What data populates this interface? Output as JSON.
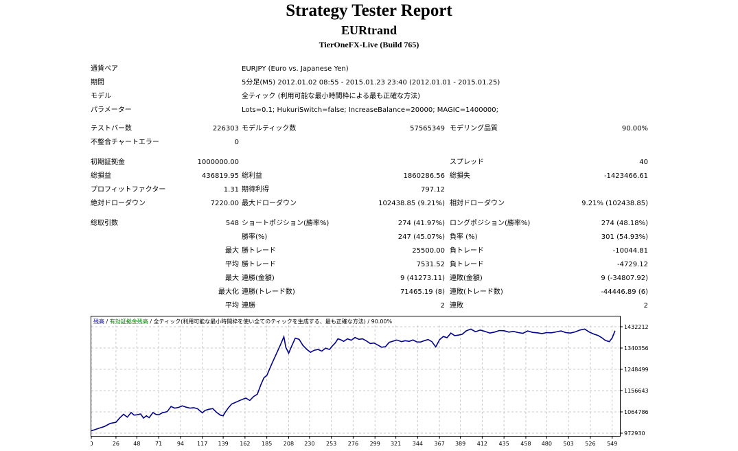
{
  "report": {
    "title": "Strategy Tester Report",
    "ea_name": "EURtrand",
    "server": "TierOneFX-Live (Build 765)"
  },
  "info": {
    "symbol_label": "通貨ペア",
    "symbol_value": "EURJPY (Euro vs. Japanese Yen)",
    "period_label": "期間",
    "period_value": "5分足(M5) 2012.01.02 08:55 - 2015.01.23 23:40 (2012.01.01 - 2015.01.25)",
    "model_label": "モデル",
    "model_value": "全ティック (利用可能な最小時間枠による最も正確な方法)",
    "params_label": "パラメーター",
    "params_value": "Lots=0.1; HukuriSwitch=false; IncreaseBalance=20000; MAGIC=1400000;"
  },
  "stats": {
    "bars_label": "テストバー数",
    "bars_value": "226303",
    "ticks_label": "モデルティック数",
    "ticks_value": "57565349",
    "quality_label": "モデリング品質",
    "quality_value": "90.00%",
    "mismatch_label": "不整合チャートエラー",
    "mismatch_value": "0",
    "deposit_label": "初期証拠金",
    "deposit_value": "1000000.00",
    "spread_label": "スプレッド",
    "spread_value": "40",
    "net_label": "総損益",
    "net_value": "436819.95",
    "gross_profit_label": "総利益",
    "gross_profit_value": "1860286.56",
    "gross_loss_label": "総損失",
    "gross_loss_value": "-1423466.61",
    "pf_label": "プロフィットファクター",
    "pf_value": "1.31",
    "expected_label": "期待利得",
    "expected_value": "797.12",
    "abs_dd_label": "絶対ドローダウン",
    "abs_dd_value": "7220.00",
    "max_dd_label": "最大ドローダウン",
    "max_dd_value": "102438.85 (9.21%)",
    "rel_dd_label": "相対ドローダウン",
    "rel_dd_value": "9.21% (102438.85)",
    "trades_label": "総取引数",
    "trades_value": "548",
    "short_label": "ショートポジション(勝率%)",
    "short_value": "274 (41.97%)",
    "long_label": "ロングポジション(勝率%)",
    "long_value": "274 (48.18%)",
    "win_rate_label": "勝率(%)",
    "win_rate_value": "247 (45.07%)",
    "loss_rate_label": "負率 (%)",
    "loss_rate_value": "301 (54.93%)",
    "max_prefix": "最大",
    "largest_win_label": "勝トレード",
    "largest_win_value": "25500.00",
    "largest_loss_label": "負トレード",
    "largest_loss_value": "-10044.81",
    "avg_prefix": "平均",
    "avg_win_label": "勝トレード",
    "avg_win_value": "7531.52",
    "avg_loss_label": "負トレード",
    "avg_loss_value": "-4729.12",
    "max2_prefix": "最大",
    "cons_win_label": "連勝(金額)",
    "cons_win_value": "9 (41273.11)",
    "cons_loss_label": "連敗(金額)",
    "cons_loss_value": "9 (-34807.92)",
    "maxized_prefix": "最大化",
    "cons_profit_label": "連勝(トレード数)",
    "cons_profit_value": "71465.19 (8)",
    "cons_lossamt_label": "連敗(トレード数)",
    "cons_lossamt_value": "-44446.89 (6)",
    "avg2_prefix": "平均",
    "avg_cons_win_label": "連勝",
    "avg_cons_win_value": "2",
    "avg_cons_loss_label": "連敗",
    "avg_cons_loss_value": "2"
  },
  "chart_data": {
    "type": "line",
    "legend": {
      "balance": "残高",
      "sep1": " / ",
      "equity": "有効証拠金残高",
      "rest": " / 全ティック(利用可能な最小時間枠を使い全てのティックを生成する、最も正確な方法) / 90.00%"
    },
    "colors": {
      "balance": "#00008b",
      "equity": "#008000",
      "grid": "#c8c8c8"
    },
    "x_ticks": [
      "0",
      "26",
      "48",
      "71",
      "94",
      "117",
      "139",
      "162",
      "185",
      "208",
      "230",
      "253",
      "276",
      "299",
      "321",
      "344",
      "367",
      "389",
      "412",
      "435",
      "458",
      "480",
      "503",
      "526",
      "549"
    ],
    "y_ticks": [
      "1432212",
      "1340356",
      "1248499",
      "1156643",
      "1064786",
      "972930"
    ],
    "ylim": [
      972930,
      1432212
    ],
    "xlim": [
      0,
      555
    ],
    "series": [
      {
        "x": [
          0,
          8,
          14,
          20,
          26,
          30,
          34,
          38,
          42,
          45,
          48,
          52,
          55,
          58,
          61,
          65,
          68,
          71,
          75,
          80,
          84,
          88,
          92,
          96,
          100,
          104,
          108,
          112,
          117,
          120,
          124,
          128,
          132,
          136,
          139,
          141,
          144,
          148,
          152,
          156,
          160,
          163,
          167,
          171,
          175,
          179,
          182,
          185,
          190,
          195,
          199,
          203,
          205,
          208,
          211,
          215,
          219,
          223,
          227,
          231,
          235,
          239,
          243,
          247,
          251,
          254,
          257,
          260,
          263,
          266,
          270,
          274,
          278,
          282,
          286,
          290,
          294,
          298,
          302,
          306,
          310,
          314,
          318,
          322,
          327,
          331,
          335,
          339,
          343,
          347,
          351,
          355,
          359,
          363,
          367,
          371,
          375,
          379,
          383,
          387,
          391,
          395,
          400,
          405,
          410,
          415,
          420,
          425,
          430,
          435,
          440,
          445,
          450,
          455,
          460,
          465,
          470,
          475,
          480,
          485,
          490,
          495,
          500,
          505,
          510,
          515,
          520,
          525,
          530,
          534,
          538,
          542,
          546,
          549,
          552
        ],
        "y": [
          983000,
          994000,
          1002000,
          1015000,
          1020000,
          1039000,
          1054000,
          1042000,
          1062000,
          1051000,
          1052000,
          1056000,
          1038000,
          1048000,
          1040000,
          1062000,
          1054000,
          1052000,
          1061000,
          1066000,
          1088000,
          1081000,
          1084000,
          1091000,
          1085000,
          1081000,
          1083000,
          1078000,
          1061000,
          1071000,
          1076000,
          1079000,
          1063000,
          1051000,
          1048000,
          1062000,
          1080000,
          1099000,
          1106000,
          1113000,
          1120000,
          1124000,
          1114000,
          1131000,
          1141000,
          1185000,
          1212000,
          1222000,
          1270000,
          1315000,
          1351000,
          1389000,
          1344000,
          1318000,
          1347000,
          1383000,
          1378000,
          1352000,
          1335000,
          1322000,
          1331000,
          1334000,
          1327000,
          1340000,
          1334000,
          1349000,
          1362000,
          1380000,
          1376000,
          1369000,
          1380000,
          1374000,
          1386000,
          1378000,
          1380000,
          1371000,
          1360000,
          1362000,
          1353000,
          1344000,
          1346000,
          1365000,
          1370000,
          1375000,
          1368000,
          1372000,
          1369000,
          1375000,
          1367000,
          1366000,
          1372000,
          1377000,
          1368000,
          1345000,
          1376000,
          1390000,
          1385000,
          1405000,
          1394000,
          1396000,
          1400000,
          1414000,
          1422000,
          1411000,
          1418000,
          1412000,
          1405000,
          1409000,
          1416000,
          1415000,
          1409000,
          1412000,
          1407000,
          1404000,
          1414000,
          1408000,
          1406000,
          1403000,
          1407000,
          1406000,
          1410000,
          1414000,
          1407000,
          1405000,
          1410000,
          1418000,
          1422000,
          1409000,
          1400000,
          1395000,
          1385000,
          1373000,
          1368000,
          1384000,
          1415000
        ]
      }
    ]
  }
}
